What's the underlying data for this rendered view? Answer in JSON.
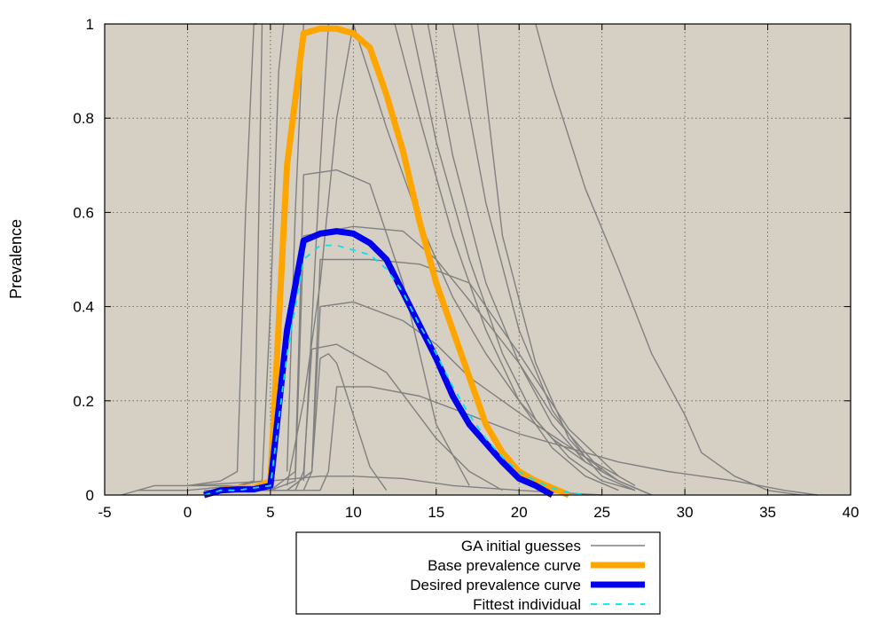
{
  "chart_data": {
    "type": "line",
    "title": "",
    "xlabel": "",
    "ylabel": "Prevalence",
    "xlim": [
      -5,
      40
    ],
    "ylim": [
      0,
      1
    ],
    "x_ticks": [
      -5,
      0,
      5,
      10,
      15,
      20,
      25,
      30,
      35,
      40
    ],
    "y_ticks": [
      0,
      0.2,
      0.4,
      0.6,
      0.8,
      1
    ],
    "x_tick_labels": [
      "-5",
      "0",
      "5",
      "10",
      "15",
      "20",
      "25",
      "30",
      "35",
      "40"
    ],
    "y_tick_labels": [
      "0",
      "0.2",
      "0.4",
      "0.6",
      "0.8",
      "1"
    ],
    "grid": true,
    "legend_position": "bottom-center",
    "background_color": "#d6d0c4",
    "series": [
      {
        "name": "GA initial guesses",
        "color": "#808080",
        "style": "thin",
        "curves": [
          {
            "x": [
              -4,
              -2,
              0,
              2,
              3,
              3.5,
              4,
              4.2
            ],
            "y": [
              0,
              0.02,
              0.02,
              0.03,
              0.05,
              0.6,
              1.0,
              1.0
            ]
          },
          {
            "x": [
              -3,
              0,
              3,
              4,
              4.3,
              4.5
            ],
            "y": [
              0.01,
              0.01,
              0.02,
              0.03,
              0.6,
              1.0
            ]
          },
          {
            "x": [
              0,
              3,
              4.5,
              5,
              5.5,
              5.8
            ],
            "y": [
              0.02,
              0.02,
              0.03,
              0.4,
              0.9,
              1.0
            ]
          },
          {
            "x": [
              1,
              5,
              6.5,
              7,
              9,
              11,
              13,
              15,
              17
            ],
            "y": [
              0.01,
              0.01,
              0.05,
              0.68,
              0.69,
              0.66,
              0.45,
              0.15,
              0.02
            ]
          },
          {
            "x": [
              1,
              5,
              6.5,
              7,
              10,
              13,
              15,
              18,
              20,
              22,
              25
            ],
            "y": [
              0.01,
              0.01,
              0.03,
              0.55,
              0.57,
              0.56,
              0.5,
              0.37,
              0.28,
              0.17,
              0.05
            ]
          },
          {
            "x": [
              2,
              6,
              7.5,
              8,
              11,
              14,
              17,
              20,
              23,
              26
            ],
            "y": [
              0.01,
              0.01,
              0.05,
              0.5,
              0.5,
              0.49,
              0.45,
              0.3,
              0.14,
              0.04
            ]
          },
          {
            "x": [
              2,
              6,
              7.5,
              8,
              10,
              13,
              15,
              17,
              19,
              21,
              24,
              27
            ],
            "y": [
              0.01,
              0.01,
              0.05,
              0.4,
              0.41,
              0.37,
              0.32,
              0.25,
              0.2,
              0.15,
              0.08,
              0.02
            ]
          },
          {
            "x": [
              2,
              6.5,
              7,
              7.5,
              9,
              12,
              15,
              17,
              19
            ],
            "y": [
              0.01,
              0.01,
              0.05,
              0.31,
              0.32,
              0.26,
              0.12,
              0.05,
              0.01
            ]
          },
          {
            "x": [
              2,
              7,
              7.5,
              8,
              8.5,
              9,
              11,
              12
            ],
            "y": [
              0.01,
              0.01,
              0.05,
              0.29,
              0.3,
              0.28,
              0.06,
              0.01
            ]
          },
          {
            "x": [
              3,
              8,
              8.5,
              9,
              11,
              14,
              17,
              20,
              23,
              26,
              29,
              33,
              36,
              38
            ],
            "y": [
              0.01,
              0.01,
              0.05,
              0.23,
              0.23,
              0.21,
              0.17,
              0.13,
              0.1,
              0.07,
              0.05,
              0.03,
              0.01,
              0.0
            ]
          },
          {
            "x": [
              0,
              5,
              8,
              10,
              13,
              16,
              20,
              25
            ],
            "y": [
              0.02,
              0.03,
              0.04,
              0.04,
              0.035,
              0.02,
              0.01,
              0.0
            ]
          },
          {
            "x": [
              6,
              7,
              8,
              9,
              10
            ],
            "y": [
              0.02,
              0.2,
              0.45,
              0.8,
              1.0
            ]
          },
          {
            "x": [
              7,
              8,
              8.5
            ],
            "y": [
              0.03,
              0.7,
              1.0
            ]
          },
          {
            "x": [
              6,
              6.5,
              7
            ],
            "y": [
              0.05,
              0.6,
              1.0
            ]
          },
          {
            "x": [
              12.5,
              14,
              16,
              18,
              20,
              22,
              24,
              26
            ],
            "y": [
              1.0,
              0.8,
              0.55,
              0.35,
              0.2,
              0.1,
              0.04,
              0.01
            ]
          },
          {
            "x": [
              13.5,
              15,
              17,
              19,
              21,
              23,
              25,
              27
            ],
            "y": [
              1.0,
              0.75,
              0.5,
              0.3,
              0.16,
              0.08,
              0.03,
              0.01
            ]
          },
          {
            "x": [
              14.5,
              16,
              18,
              20,
              22,
              24,
              26,
              28
            ],
            "y": [
              1.0,
              0.72,
              0.45,
              0.28,
              0.15,
              0.07,
              0.03,
              0.0
            ]
          },
          {
            "x": [
              16,
              18,
              20,
              22,
              24,
              26,
              28
            ],
            "y": [
              1.0,
              0.62,
              0.35,
              0.18,
              0.08,
              0.03,
              0.0
            ]
          },
          {
            "x": [
              17.5,
              19,
              21,
              23,
              25,
              27
            ],
            "y": [
              1.0,
              0.55,
              0.28,
              0.12,
              0.04,
              0.01
            ]
          },
          {
            "x": [
              21,
              22,
              24,
              26,
              28,
              30,
              31,
              33,
              35,
              37
            ],
            "y": [
              1.0,
              0.87,
              0.65,
              0.48,
              0.3,
              0.17,
              0.09,
              0.04,
              0.01,
              0.0
            ]
          },
          {
            "x": [
              10,
              12,
              14,
              16,
              18,
              20,
              22,
              24,
              26,
              28
            ],
            "y": [
              1.0,
              0.78,
              0.58,
              0.42,
              0.3,
              0.2,
              0.12,
              0.07,
              0.03,
              0.0
            ]
          }
        ]
      },
      {
        "name": "Base prevalence curve",
        "color": "#ffa500",
        "style": "thick",
        "x": [
          1,
          2,
          3,
          4,
          5,
          6,
          7,
          8,
          9,
          10,
          11,
          12,
          13,
          14,
          15,
          16,
          17,
          18,
          19,
          20,
          21,
          22,
          23
        ],
        "y": [
          0,
          0.01,
          0.015,
          0.015,
          0.03,
          0.7,
          0.98,
          0.99,
          0.99,
          0.98,
          0.95,
          0.85,
          0.73,
          0.58,
          0.45,
          0.35,
          0.25,
          0.15,
          0.09,
          0.05,
          0.03,
          0.015,
          0.0
        ]
      },
      {
        "name": "Desired prevalence curve",
        "color": "#0000ee",
        "style": "thick",
        "x": [
          1,
          2,
          3,
          4,
          5,
          6,
          7,
          8,
          9,
          10,
          11,
          12,
          13,
          14,
          15,
          16,
          17,
          18,
          19,
          20,
          21,
          22
        ],
        "y": [
          0,
          0.01,
          0.012,
          0.012,
          0.02,
          0.35,
          0.54,
          0.555,
          0.56,
          0.555,
          0.535,
          0.5,
          0.43,
          0.36,
          0.29,
          0.21,
          0.15,
          0.11,
          0.07,
          0.035,
          0.02,
          0.0
        ]
      },
      {
        "name": "Fittest individual",
        "color": "#00e5ee",
        "style": "dashed",
        "x": [
          1,
          2,
          3,
          4,
          5,
          6,
          7,
          8,
          9,
          10,
          11,
          12,
          13,
          14,
          15,
          16,
          17,
          18,
          19,
          20,
          21,
          22,
          23,
          24
        ],
        "y": [
          0,
          0.01,
          0.01,
          0.015,
          0.02,
          0.3,
          0.5,
          0.53,
          0.53,
          0.52,
          0.51,
          0.48,
          0.43,
          0.36,
          0.3,
          0.23,
          0.17,
          0.12,
          0.08,
          0.05,
          0.03,
          0.015,
          0.005,
          0.0
        ]
      }
    ]
  }
}
